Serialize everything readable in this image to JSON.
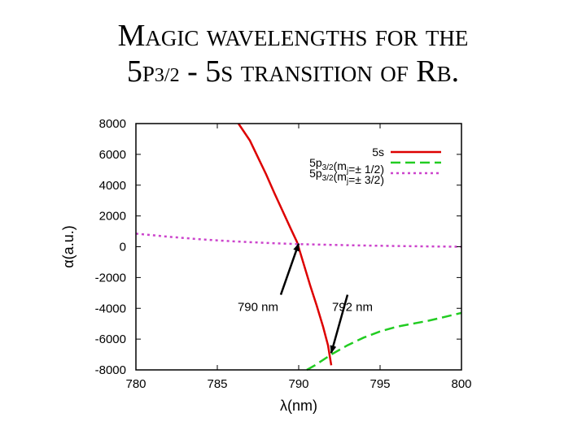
{
  "title": {
    "line1": "Magic wavelengths for the",
    "line2_pre": "5p",
    "line2_sub": "3/2",
    "line2_post": " - 5s transition of Rb."
  },
  "chart_data": {
    "type": "line",
    "xlabel": "λ(nm)",
    "ylabel": "α(a.u.)",
    "xlim": [
      780,
      800
    ],
    "ylim": [
      -8000,
      8000
    ],
    "xticks": [
      780,
      785,
      790,
      795,
      800
    ],
    "yticks": [
      8000,
      6000,
      4000,
      2000,
      0,
      -2000,
      -4000,
      -6000,
      -8000
    ],
    "legend_position": "top-right",
    "series": [
      {
        "name": "5s",
        "legend_main": "5s",
        "legend_sub": "",
        "legend_rest": "",
        "color": "#dd0000",
        "style": "solid",
        "x": [
          786.3,
          787.0,
          787.5,
          788.0,
          788.5,
          789.0,
          789.5,
          789.9,
          790.3,
          790.7,
          791.1,
          791.5,
          791.8,
          792.0
        ],
        "y": [
          8000,
          6900,
          5800,
          4700,
          3500,
          2350,
          1200,
          300,
          -1100,
          -2500,
          -3800,
          -5200,
          -6400,
          -7700
        ]
      },
      {
        "name": "5p3/2(mj=± 1/2)",
        "legend_main": "5p",
        "legend_sub": "3/2",
        "legend_rest": "(m",
        "legend_sub2": "j",
        "legend_end": "=± 1/2)",
        "color": "#22cc22",
        "style": "dashed",
        "x": [
          790.5,
          791.0,
          792.0,
          793.0,
          794.0,
          795.0,
          796.0,
          797.0,
          798.0,
          799.0,
          800.0
        ],
        "y": [
          -8000,
          -7700,
          -7000,
          -6400,
          -5900,
          -5500,
          -5200,
          -5000,
          -4800,
          -4550,
          -4300
        ]
      },
      {
        "name": "5p3/2(mj=± 3/2)",
        "legend_main": "5p",
        "legend_sub": "3/2",
        "legend_rest": "(m",
        "legend_sub2": "j",
        "legend_end": "=± 3/2)",
        "color": "#cc44cc",
        "style": "dotted",
        "x": [
          780,
          782,
          784,
          786,
          788,
          790,
          792,
          794,
          796,
          798,
          800
        ],
        "y": [
          850,
          650,
          480,
          350,
          250,
          170,
          120,
          80,
          50,
          20,
          0
        ]
      }
    ],
    "annotations": [
      {
        "text": "790 nm",
        "x": 790.0,
        "y": 200,
        "text_x": 787.5,
        "text_y": -2800
      },
      {
        "text": "792 nm",
        "x": 792.0,
        "y": -6900,
        "text_x": 793.3,
        "text_y": -2800
      }
    ]
  }
}
